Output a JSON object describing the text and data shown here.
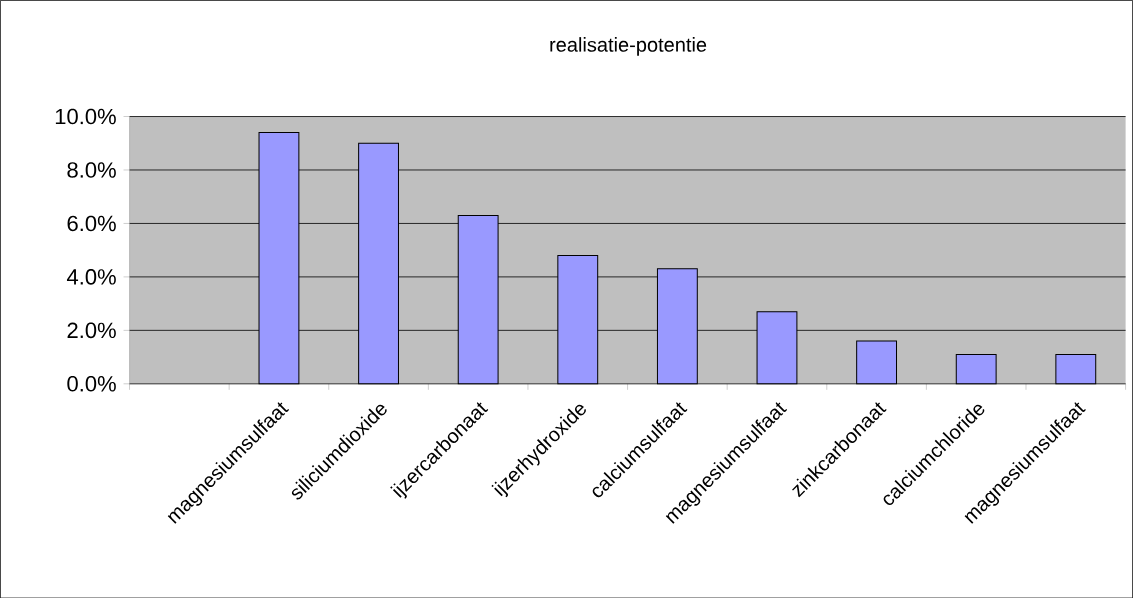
{
  "chart_data": {
    "type": "bar",
    "title": "realisatie-potentie",
    "categories": [
      null,
      "magnesiumsulfaat",
      "siliciumdioxide",
      "ijzercarbonaat",
      "ijzerhydroxide",
      "calciumsulfaat",
      "magnesiumsulfaat",
      "zinkcarbonaat",
      "calciumchloride",
      "magnesiumsulfaat"
    ],
    "values": [
      null,
      9.4,
      9.0,
      6.3,
      4.8,
      4.3,
      2.7,
      1.6,
      1.1,
      1.1
    ],
    "color": "#9999ff",
    "ylim": [
      0,
      10
    ],
    "yticks": [
      {
        "value": 0,
        "label": "0.0%"
      },
      {
        "value": 2,
        "label": "2.0%"
      },
      {
        "value": 4,
        "label": "4.0%"
      },
      {
        "value": 6,
        "label": "6.0%"
      },
      {
        "value": 8,
        "label": "8.0%"
      },
      {
        "value": 10,
        "label": "10.0%"
      }
    ],
    "grid": "y"
  }
}
